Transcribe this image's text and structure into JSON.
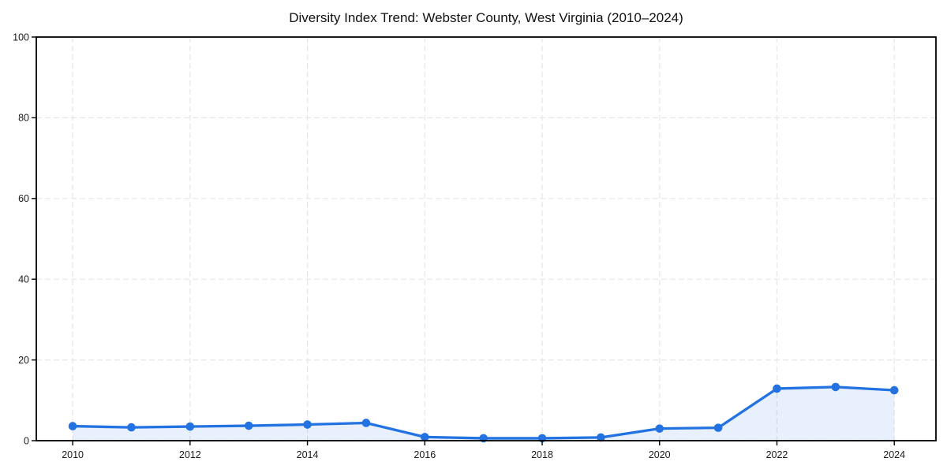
{
  "chart_data": {
    "type": "line",
    "title": "Diversity Index Trend: Webster County, West Virginia (2010–2024)",
    "xlabel": "",
    "ylabel": "",
    "x": [
      2010,
      2011,
      2012,
      2013,
      2014,
      2015,
      2016,
      2017,
      2018,
      2019,
      2020,
      2021,
      2022,
      2023,
      2024
    ],
    "values": [
      3.6,
      3.3,
      3.5,
      3.7,
      4.0,
      4.4,
      0.9,
      0.6,
      0.6,
      0.8,
      3.0,
      3.2,
      12.9,
      13.3,
      12.5
    ],
    "xticks": [
      2010,
      2012,
      2014,
      2016,
      2018,
      2020,
      2022,
      2024
    ],
    "yticks": [
      0,
      20,
      40,
      60,
      80,
      100
    ],
    "xlim": [
      2009.38,
      2024.71
    ],
    "ylim": [
      0,
      100
    ],
    "grid": true,
    "grid_style": "dashed",
    "legend": "none",
    "marker": "circle",
    "colors": {
      "line": "#2372e2",
      "marker": "#2372e2",
      "fill": "#2372e2",
      "fill_opacity": 0.11,
      "grid": "#e6e6e6",
      "axis": "#000000",
      "text": "#1a1a1a",
      "background": "#ffffff"
    }
  }
}
